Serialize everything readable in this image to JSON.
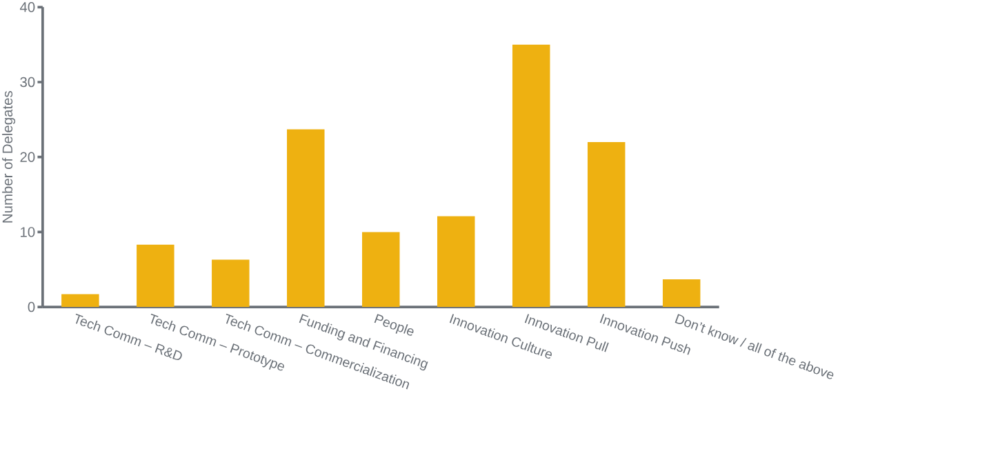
{
  "chart_data": {
    "type": "bar",
    "ylabel": "Number of Delegates",
    "categories": [
      "Tech Comm – R&D",
      "Tech Comm – Prototype",
      "Tech Comm – Commercialization",
      "Funding and Financing",
      "People",
      "Innovation Culture",
      "Innovation Pull",
      "Innovation Push",
      "Don’t know / all of the above"
    ],
    "values": [
      1.7,
      8.3,
      6.3,
      23.7,
      10,
      12.1,
      35,
      22,
      3.7
    ],
    "color": "#eeb111",
    "ylim": [
      0,
      40
    ],
    "yticks": [
      0,
      10,
      20,
      30,
      40
    ],
    "grid": false
  }
}
